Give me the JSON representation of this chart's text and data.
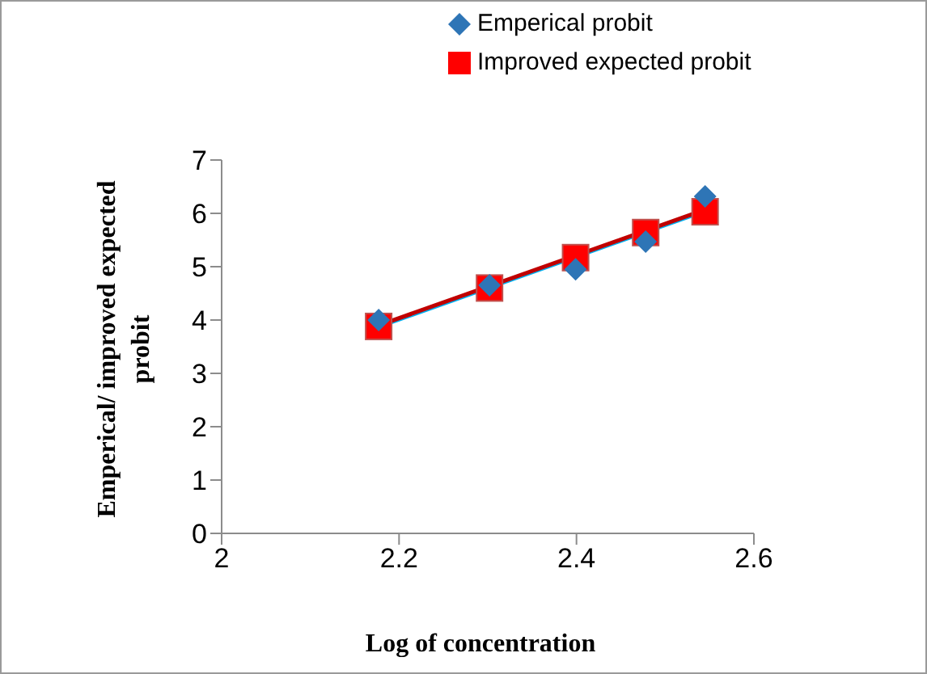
{
  "chart_data": {
    "type": "scatter",
    "xlabel": "Log of concentration",
    "ylabel": "Emperical/ improved expected probit",
    "xlim": [
      2,
      2.6
    ],
    "xticks": [
      2,
      2.2,
      2.4,
      2.6
    ],
    "ylim": [
      0,
      7
    ],
    "yticks": [
      0,
      1,
      2,
      3,
      4,
      5,
      6,
      7
    ],
    "grid": false,
    "legend": "top right",
    "series": [
      {
        "name": "Emperical probit",
        "marker": "diamond",
        "color": "#2e75b6",
        "x": [
          2.177,
          2.302,
          2.399,
          2.478,
          2.545
        ],
        "values": [
          4.0,
          4.65,
          4.95,
          5.47,
          6.32
        ]
      },
      {
        "name": "Improved expected probit",
        "marker": "square",
        "color": "#ff0000",
        "x": [
          2.177,
          2.302,
          2.399,
          2.478,
          2.545
        ],
        "values": [
          3.88,
          4.6,
          5.17,
          5.64,
          6.03
        ]
      },
      {
        "type": "line",
        "marker": "none",
        "color": "#c00000",
        "x": [
          2.177,
          2.545
        ],
        "values": [
          3.9,
          6.07
        ]
      },
      {
        "type": "line",
        "marker": "none",
        "color": "#00b0f0",
        "x": [
          2.177,
          2.545
        ],
        "values": [
          3.86,
          6.03
        ]
      }
    ]
  }
}
